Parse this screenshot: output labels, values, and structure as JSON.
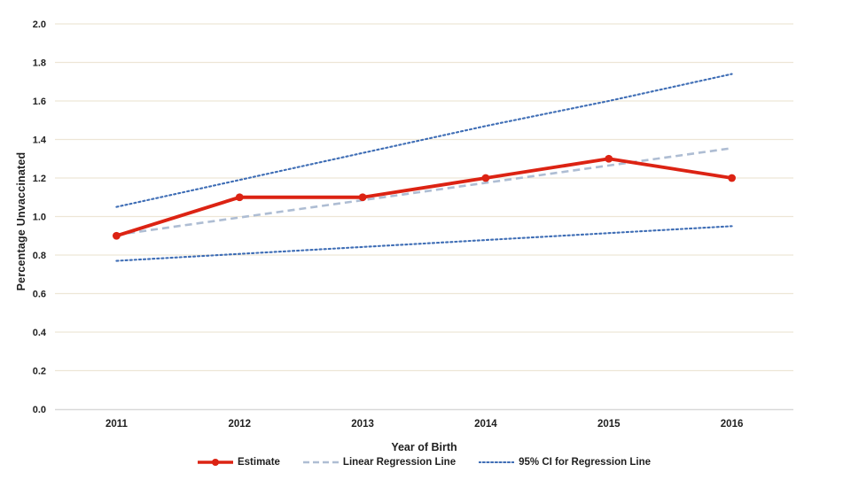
{
  "chart_data": {
    "type": "line",
    "title": "",
    "xlabel": "Year of Birth",
    "ylabel": "Percentage Unvaccinated",
    "categories": [
      "2011",
      "2012",
      "2013",
      "2014",
      "2015",
      "2016"
    ],
    "yticks": [
      "0.0",
      "0.2",
      "0.4",
      "0.6",
      "0.8",
      "1.0",
      "1.2",
      "1.4",
      "1.6",
      "1.8",
      "2.0"
    ],
    "ylim": [
      0.0,
      2.0
    ],
    "grid": true,
    "legend_position": "bottom",
    "colors": {
      "estimate": "#dc2313",
      "regression": "#aebdd3",
      "ci": "#3e6db5",
      "gridline": "#ede6d6",
      "axis_line": "#d9d9d9",
      "text": "#1f1f1f"
    },
    "series": [
      {
        "name": "Estimate",
        "style": "solid-with-markers",
        "color_key": "estimate",
        "values": [
          0.9,
          1.1,
          1.1,
          1.2,
          1.3,
          1.2
        ]
      },
      {
        "name": "Linear Regression Line",
        "style": "dashed",
        "color_key": "regression",
        "values": [
          0.905,
          0.995,
          1.085,
          1.175,
          1.265,
          1.355
        ]
      },
      {
        "name": "95% CI for Regression Line",
        "style": "dotted",
        "color_key": "ci",
        "values_upper": [
          1.05,
          1.19,
          1.33,
          1.47,
          1.6,
          1.74
        ],
        "values_lower": [
          0.77,
          0.806,
          0.842,
          0.878,
          0.914,
          0.95
        ]
      }
    ]
  }
}
